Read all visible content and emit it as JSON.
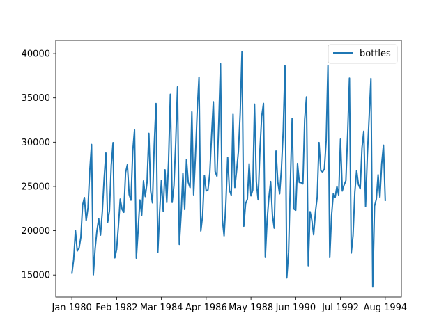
{
  "chart_data": {
    "type": "line",
    "title": "",
    "xlabel": "",
    "ylabel": "",
    "legend_position": "top-right",
    "grid": false,
    "x_ticks": [
      {
        "label": "Jan 1980",
        "date": "1980-01"
      },
      {
        "label": "Feb 1982",
        "date": "1982-02"
      },
      {
        "label": "Mar 1984",
        "date": "1984-03"
      },
      {
        "label": "Apr 1986",
        "date": "1986-04"
      },
      {
        "label": "May 1988",
        "date": "1988-05"
      },
      {
        "label": "Jun 1990",
        "date": "1990-06"
      },
      {
        "label": "Jul 1992",
        "date": "1992-07"
      },
      {
        "label": "Aug 1994",
        "date": "1994-08"
      }
    ],
    "y_ticks": [
      15000,
      20000,
      25000,
      30000,
      35000,
      40000
    ],
    "xlim": [
      "1979-04",
      "1995-05"
    ],
    "ylim": [
      12500,
      41500
    ],
    "series": [
      {
        "name": "bottles",
        "color": "#1f77b4",
        "start": "1980-01",
        "values": [
          15136,
          16733,
          20016,
          17708,
          18019,
          19227,
          22893,
          23739,
          21133,
          22591,
          26786,
          29740,
          15028,
          17977,
          20008,
          21354,
          19498,
          22125,
          25817,
          28779,
          20960,
          22254,
          27392,
          29945,
          16933,
          17892,
          20533,
          23569,
          22417,
          22084,
          26580,
          27454,
          24081,
          23451,
          28991,
          31386,
          16896,
          20045,
          23471,
          21747,
          25621,
          23859,
          25500,
          30998,
          24475,
          23145,
          29701,
          34365,
          17556,
          22077,
          25702,
          22214,
          26886,
          23191,
          27831,
          35406,
          23195,
          25110,
          30009,
          36242,
          18450,
          21845,
          26488,
          22394,
          28057,
          25451,
          24872,
          33424,
          24052,
          28449,
          33533,
          37351,
          19969,
          21701,
          26249,
          24493,
          24603,
          26485,
          30723,
          34569,
          26689,
          26157,
          32064,
          38870,
          21337,
          19419,
          23166,
          28286,
          24570,
          24001,
          33151,
          24878,
          26804,
          28967,
          33311,
          40226,
          20504,
          23060,
          23562,
          27562,
          23940,
          24584,
          34303,
          25517,
          23494,
          29095,
          32903,
          34379,
          16991,
          21109,
          23740,
          25552,
          21752,
          20294,
          29009,
          25500,
          24166,
          26960,
          31222,
          38641,
          14672,
          17543,
          25453,
          32683,
          22449,
          22316,
          27595,
          25451,
          25421,
          25288,
          32568,
          35110,
          16052,
          22146,
          21198,
          19543,
          22084,
          23816,
          29961,
          26773,
          26635,
          26972,
          30207,
          38687,
          16974,
          21697,
          24179,
          23757,
          25013,
          24019,
          30345,
          24488,
          25156,
          25650,
          30923,
          37240,
          17466,
          19463,
          24352,
          26805,
          25236,
          24735,
          29356,
          31234,
          22724,
          28496,
          32857,
          37198,
          13652,
          22784,
          23565,
          26323,
          23779,
          27549,
          29660,
          23356
        ]
      }
    ]
  }
}
